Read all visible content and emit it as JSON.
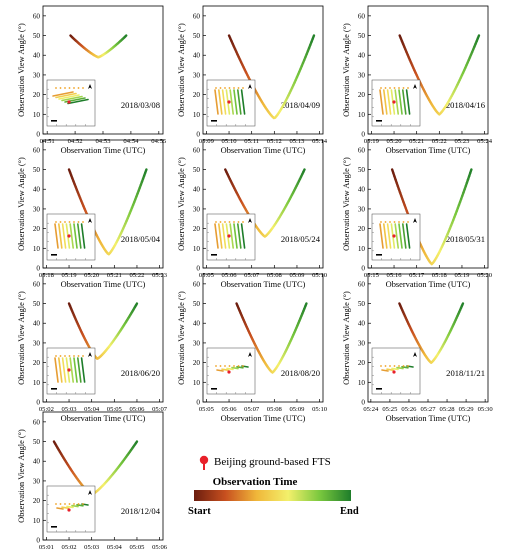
{
  "chart_data": [
    {
      "type": "line",
      "date": "2018/03/08",
      "ylabel": "Observation View Angle (°)",
      "xlabel": "Observation Time (UTC)",
      "ylim": [
        0,
        65
      ],
      "ytick_labels": [
        "0",
        "10",
        "20",
        "30",
        "40",
        "50",
        "60"
      ],
      "x_ticks": [
        "04:51",
        "04:52",
        "04:53",
        "04:54",
        "04:55"
      ],
      "x": [
        "04:51:50",
        "04:52:50",
        "04:53:50"
      ],
      "y": [
        50,
        39,
        50
      ]
    },
    {
      "type": "line",
      "date": "2018/04/09",
      "ylabel": "Observation View Angle (°)",
      "xlabel": "Observation Time (UTC)",
      "ylim": [
        0,
        65
      ],
      "ytick_labels": [
        "0",
        "10",
        "20",
        "30",
        "40",
        "50",
        "60"
      ],
      "x_ticks": [
        "05:09",
        "05:10",
        "05:11",
        "05:12",
        "05:13",
        "05:14"
      ],
      "x": [
        "05:10:00",
        "05:12:00",
        "05:13:45"
      ],
      "y": [
        50,
        8,
        50
      ]
    },
    {
      "type": "line",
      "date": "2018/04/16",
      "ylabel": "Observation View Angle (°)",
      "xlabel": "Observation Time (UTC)",
      "ylim": [
        0,
        65
      ],
      "ytick_labels": [
        "0",
        "10",
        "20",
        "30",
        "40",
        "50",
        "60"
      ],
      "x_ticks": [
        "05:19",
        "05:20",
        "05:21",
        "05:22",
        "05:23",
        "05:24"
      ],
      "x": [
        "05:20:15",
        "05:22:00",
        "05:23:45"
      ],
      "y": [
        50,
        10,
        50
      ]
    },
    {
      "type": "line",
      "date": "2018/05/04",
      "ylabel": "Observation View Angle (°)",
      "xlabel": "Observation Time (UTC)",
      "ylim": [
        0,
        65
      ],
      "ytick_labels": [
        "0",
        "10",
        "20",
        "30",
        "40",
        "50",
        "60"
      ],
      "x_ticks": [
        "05:18",
        "05:19",
        "05:20",
        "05:21",
        "05:22",
        "05:23"
      ],
      "x": [
        "05:19:00",
        "05:20:45",
        "05:22:25"
      ],
      "y": [
        50,
        7,
        50
      ]
    },
    {
      "type": "line",
      "date": "2018/05/24",
      "ylabel": "Observation View Angle (°)",
      "xlabel": "Observation Time (UTC)",
      "ylim": [
        0,
        65
      ],
      "ytick_labels": [
        "0",
        "10",
        "20",
        "30",
        "40",
        "50",
        "60"
      ],
      "x_ticks": [
        "05:05",
        "05:06",
        "05:07",
        "05:08",
        "05:09",
        "05:10"
      ],
      "x": [
        "05:05:50",
        "05:07:35",
        "05:09:20"
      ],
      "y": [
        50,
        16,
        50
      ]
    },
    {
      "type": "line",
      "date": "2018/05/31",
      "ylabel": "Observation View Angle (°)",
      "xlabel": "Observation Time (UTC)",
      "ylim": [
        0,
        65
      ],
      "ytick_labels": [
        "0",
        "10",
        "20",
        "30",
        "40",
        "50",
        "60"
      ],
      "x_ticks": [
        "05:15",
        "05:16",
        "05:17",
        "05:18",
        "05:19",
        "05:20"
      ],
      "x": [
        "05:15:55",
        "05:17:40",
        "05:19:25"
      ],
      "y": [
        50,
        2,
        50
      ]
    },
    {
      "type": "line",
      "date": "2018/06/20",
      "ylabel": "Observation View Angle (°)",
      "xlabel": "Observation Time (UTC)",
      "ylim": [
        0,
        65
      ],
      "ytick_labels": [
        "0",
        "10",
        "20",
        "30",
        "40",
        "50",
        "60"
      ],
      "x_ticks": [
        "05:02",
        "05:03",
        "05:04",
        "05:05",
        "05:06",
        "05:07"
      ],
      "x": [
        "05:03:00",
        "05:04:15",
        "05:06:00"
      ],
      "y": [
        50,
        22,
        50
      ]
    },
    {
      "type": "line",
      "date": "2018/08/20",
      "ylabel": "Observation View Angle (°)",
      "xlabel": "Observation Time (UTC)",
      "ylim": [
        0,
        65
      ],
      "ytick_labels": [
        "0",
        "10",
        "20",
        "30",
        "40",
        "50",
        "60"
      ],
      "x_ticks": [
        "05:05",
        "05:06",
        "05:07",
        "05:08",
        "05:09",
        "05:10"
      ],
      "x": [
        "05:06:20",
        "05:07:55",
        "05:09:25"
      ],
      "y": [
        50,
        15,
        50
      ]
    },
    {
      "type": "line",
      "date": "2018/11/21",
      "ylabel": "Observation View Angle (°)",
      "xlabel": "Observation Time (UTC)",
      "ylim": [
        0,
        65
      ],
      "ytick_labels": [
        "0",
        "10",
        "20",
        "30",
        "40",
        "50",
        "60"
      ],
      "x_ticks": [
        "05:24",
        "05:25",
        "05:26",
        "05:27",
        "05:28",
        "05:29",
        "05:30"
      ],
      "x": [
        "05:25:30",
        "05:27:10",
        "05:28:50"
      ],
      "y": [
        50,
        20,
        50
      ]
    },
    {
      "type": "line",
      "date": "2018/12/04",
      "ylabel": "Observation View Angle (°)",
      "xlabel": "Observation Time (UTC)",
      "ylim": [
        0,
        65
      ],
      "ytick_labels": [
        "0",
        "10",
        "20",
        "30",
        "40",
        "50",
        "60"
      ],
      "x_ticks": [
        "05:01",
        "05:02",
        "05:03",
        "05:04",
        "05:05",
        "05:06"
      ],
      "x": [
        "05:01:20",
        "05:03:00",
        "05:05:00"
      ],
      "y": [
        50,
        23,
        50
      ]
    }
  ],
  "legend": {
    "marker_label": "Beijing ground-based FTS",
    "colorbar_title": "Observation Time",
    "start_label": "Start",
    "end_label": "End",
    "marker_color": "#e8202a",
    "gradient": [
      "#6b1d0f",
      "#c8501f",
      "#f0b73a",
      "#f3f06b",
      "#7ac83e",
      "#1e7d2a"
    ]
  }
}
